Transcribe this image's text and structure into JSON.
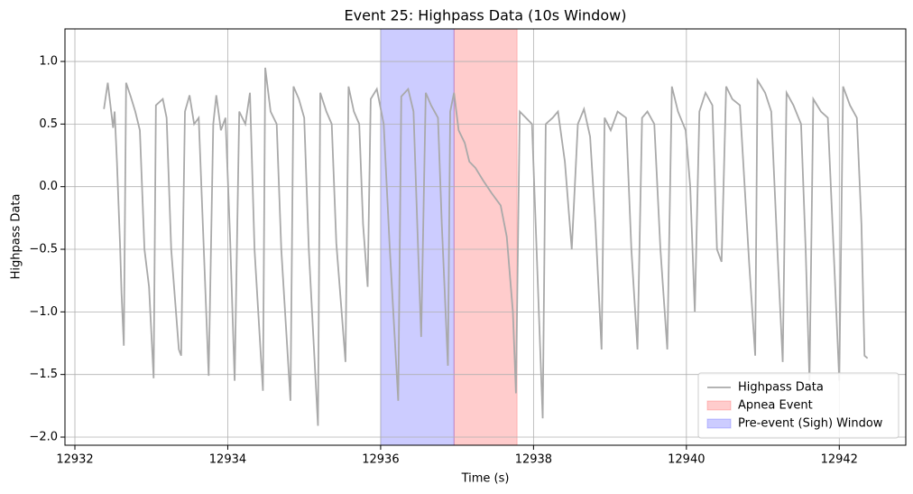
{
  "chart_data": {
    "type": "line",
    "title": "Event 25: Highpass Data (10s Window)",
    "x_label": "Time (s)",
    "y_label": "Highpass Data",
    "x": [
      12932.38,
      12932.43,
      12932.5,
      12932.52,
      12932.55,
      12932.59,
      12932.61,
      12932.64,
      12932.67,
      12932.73,
      12932.79,
      12932.85,
      12932.91,
      12932.97,
      12933.03,
      12933.06,
      12933.15,
      12933.2,
      12933.26,
      12933.36,
      12933.39,
      12933.44,
      12933.5,
      12933.56,
      12933.62,
      12933.68,
      12933.75,
      12933.81,
      12933.85,
      12933.91,
      12933.97,
      12934.03,
      12934.09,
      12934.15,
      12934.23,
      12934.29,
      12934.35,
      12934.46,
      12934.49,
      12934.56,
      12934.64,
      12934.7,
      12934.82,
      12934.86,
      12934.93,
      12935.0,
      12935.06,
      12935.18,
      12935.21,
      12935.29,
      12935.36,
      12935.42,
      12935.54,
      12935.58,
      12935.65,
      12935.72,
      12935.77,
      12935.83,
      12935.87,
      12935.95,
      12936.04,
      12936.12,
      12936.23,
      12936.27,
      12936.36,
      12936.43,
      12936.49,
      12936.53,
      12936.59,
      12936.66,
      12936.75,
      12936.8,
      12936.88,
      12936.91,
      12936.96,
      12937.02,
      12937.1,
      12937.16,
      12937.24,
      12937.34,
      12937.45,
      12937.57,
      12937.65,
      12937.73,
      12937.77,
      12937.82,
      12937.9,
      12937.98,
      12938.04,
      12938.12,
      12938.16,
      12938.25,
      12938.32,
      12938.41,
      12938.5,
      12938.58,
      12938.66,
      12938.74,
      12938.81,
      12938.89,
      12938.93,
      12939.01,
      12939.1,
      12939.21,
      12939.28,
      12939.36,
      12939.42,
      12939.49,
      12939.58,
      12939.66,
      12939.75,
      12939.81,
      12939.89,
      12939.99,
      12940.05,
      12940.11,
      12940.17,
      12940.25,
      12940.34,
      12940.4,
      12940.46,
      12940.52,
      12940.6,
      12940.7,
      12940.82,
      12940.9,
      12940.93,
      12941.03,
      12941.11,
      12941.19,
      12941.26,
      12941.31,
      12941.4,
      12941.5,
      12941.56,
      12941.61,
      12941.66,
      12941.76,
      12941.85,
      12941.94,
      12942.0,
      12942.05,
      12942.14,
      12942.23,
      12942.29,
      12942.33,
      12942.37
    ],
    "series": [
      {
        "name": "Highpass Data",
        "color": "#a9a9a9",
        "values": [
          0.62,
          0.83,
          0.47,
          0.6,
          0.2,
          -0.45,
          -0.85,
          -1.27,
          0.83,
          0.72,
          0.6,
          0.45,
          -0.5,
          -0.8,
          -1.53,
          0.65,
          0.7,
          0.55,
          -0.5,
          -1.3,
          -1.35,
          0.6,
          0.73,
          0.5,
          0.55,
          -0.4,
          -1.51,
          0.5,
          0.73,
          0.45,
          0.55,
          -0.4,
          -1.55,
          0.6,
          0.5,
          0.75,
          -0.5,
          -1.63,
          0.95,
          0.6,
          0.5,
          -0.5,
          -1.71,
          0.8,
          0.7,
          0.55,
          -0.5,
          -1.91,
          0.75,
          0.6,
          0.5,
          -0.45,
          -1.4,
          0.8,
          0.6,
          0.5,
          -0.3,
          -0.8,
          0.7,
          0.78,
          0.5,
          -0.5,
          -1.71,
          0.72,
          0.78,
          0.6,
          -0.5,
          -1.2,
          0.75,
          0.65,
          0.55,
          -0.3,
          -1.43,
          0.6,
          0.75,
          0.45,
          0.35,
          0.2,
          0.15,
          0.05,
          -0.05,
          -0.15,
          -0.4,
          -1.0,
          -1.65,
          0.6,
          0.55,
          0.5,
          -0.5,
          -1.85,
          0.5,
          0.55,
          0.6,
          0.2,
          -0.5,
          0.5,
          0.62,
          0.4,
          -0.3,
          -1.3,
          0.55,
          0.45,
          0.6,
          0.55,
          -0.5,
          -1.3,
          0.55,
          0.6,
          0.5,
          -0.5,
          -1.3,
          0.8,
          0.6,
          0.45,
          0.0,
          -1.0,
          0.6,
          0.75,
          0.65,
          -0.5,
          -0.6,
          0.8,
          0.7,
          0.65,
          -0.6,
          -1.35,
          0.85,
          0.75,
          0.6,
          -0.5,
          -1.4,
          0.75,
          0.65,
          0.5,
          -0.5,
          -1.55,
          0.7,
          0.6,
          0.55,
          -0.7,
          -1.55,
          0.8,
          0.65,
          0.55,
          -0.3,
          -1.35,
          -1.37
        ]
      }
    ],
    "spans": [
      {
        "name": "Apnea Event",
        "color": "#ff0000",
        "alpha": 0.2,
        "start": 12936.96,
        "end": 12937.785
      },
      {
        "name": "Pre-event (Sigh) Window",
        "color": "#0000ff",
        "alpha": 0.2,
        "start": 12936.0,
        "end": 12936.96
      }
    ],
    "xlim": [
      12931.87,
      12942.87
    ],
    "ylim": [
      -2.065,
      1.26
    ],
    "xticks": [
      12932,
      12934,
      12936,
      12938,
      12940,
      12942
    ],
    "yticks": [
      {
        "value": -2,
        "label": "−2.0"
      },
      {
        "value": -1.5,
        "label": "−1.5"
      },
      {
        "value": -1,
        "label": "−1.0"
      },
      {
        "value": -0.5,
        "label": "−0.5"
      },
      {
        "value": 0,
        "label": "0.0"
      },
      0.5,
      {
        "value": 1,
        "label": "1.0"
      }
    ],
    "grid": true,
    "legend": "lower right"
  }
}
